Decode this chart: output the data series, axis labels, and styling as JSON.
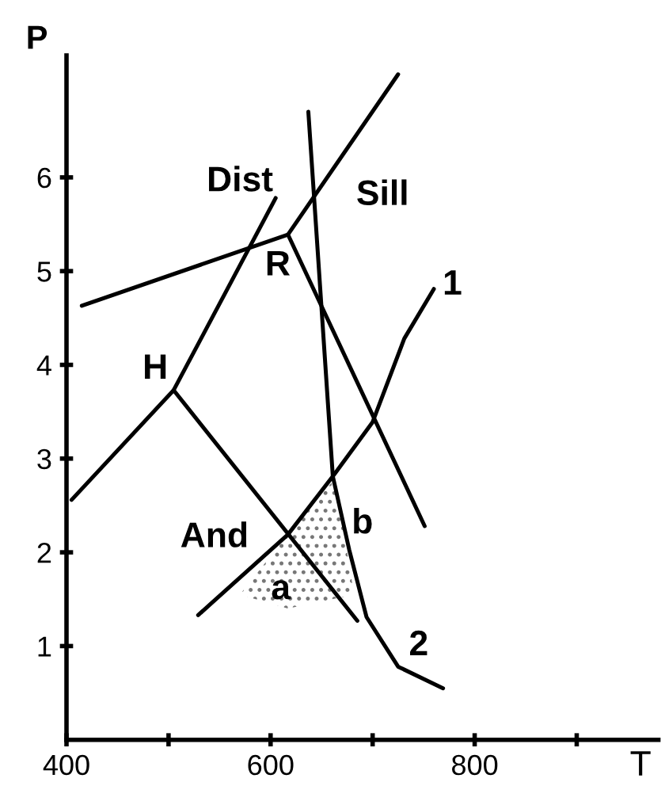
{
  "chart_data": {
    "type": "line",
    "xlabel": "T",
    "ylabel": "P",
    "xlim": [
      400,
      980
    ],
    "ylim": [
      0,
      7.3
    ],
    "xticks": [
      400,
      {
        "value": 500,
        "label": null
      },
      600,
      {
        "value": 700,
        "label": null
      },
      800,
      {
        "value": 900,
        "label": null
      }
    ],
    "yticks": [
      1,
      2,
      3,
      4,
      5,
      6
    ],
    "grid": false,
    "legend": false,
    "marker": "none",
    "line_style": "solid",
    "series": [
      {
        "color": "#000000",
        "x": [
          405,
          505,
          605
        ],
        "values": [
          2.56,
          3.73,
          5.78
        ]
      },
      {
        "color": "#000000",
        "x": [
          505,
          685
        ],
        "values": [
          3.73,
          1.27
        ]
      },
      {
        "color": "#000000",
        "x": [
          415,
          617,
          725
        ],
        "values": [
          4.63,
          5.39,
          7.1
        ]
      },
      {
        "color": "#000000",
        "x": [
          617,
          751
        ],
        "values": [
          5.39,
          2.28
        ]
      },
      {
        "color": "#000000",
        "x": [
          637,
          661,
          677,
          694,
          725,
          769
        ],
        "values": [
          6.7,
          2.81,
          2.03,
          1.31,
          0.78,
          0.55
        ]
      },
      {
        "color": "#000000",
        "x": [
          529,
          617,
          663,
          700,
          731,
          760
        ],
        "values": [
          1.33,
          2.19,
          2.84,
          3.39,
          4.28,
          4.81
        ]
      }
    ],
    "annotations": [
      "Dist",
      "Sill",
      "R",
      "H",
      "And",
      "a",
      "b",
      "1",
      "2"
    ]
  }
}
